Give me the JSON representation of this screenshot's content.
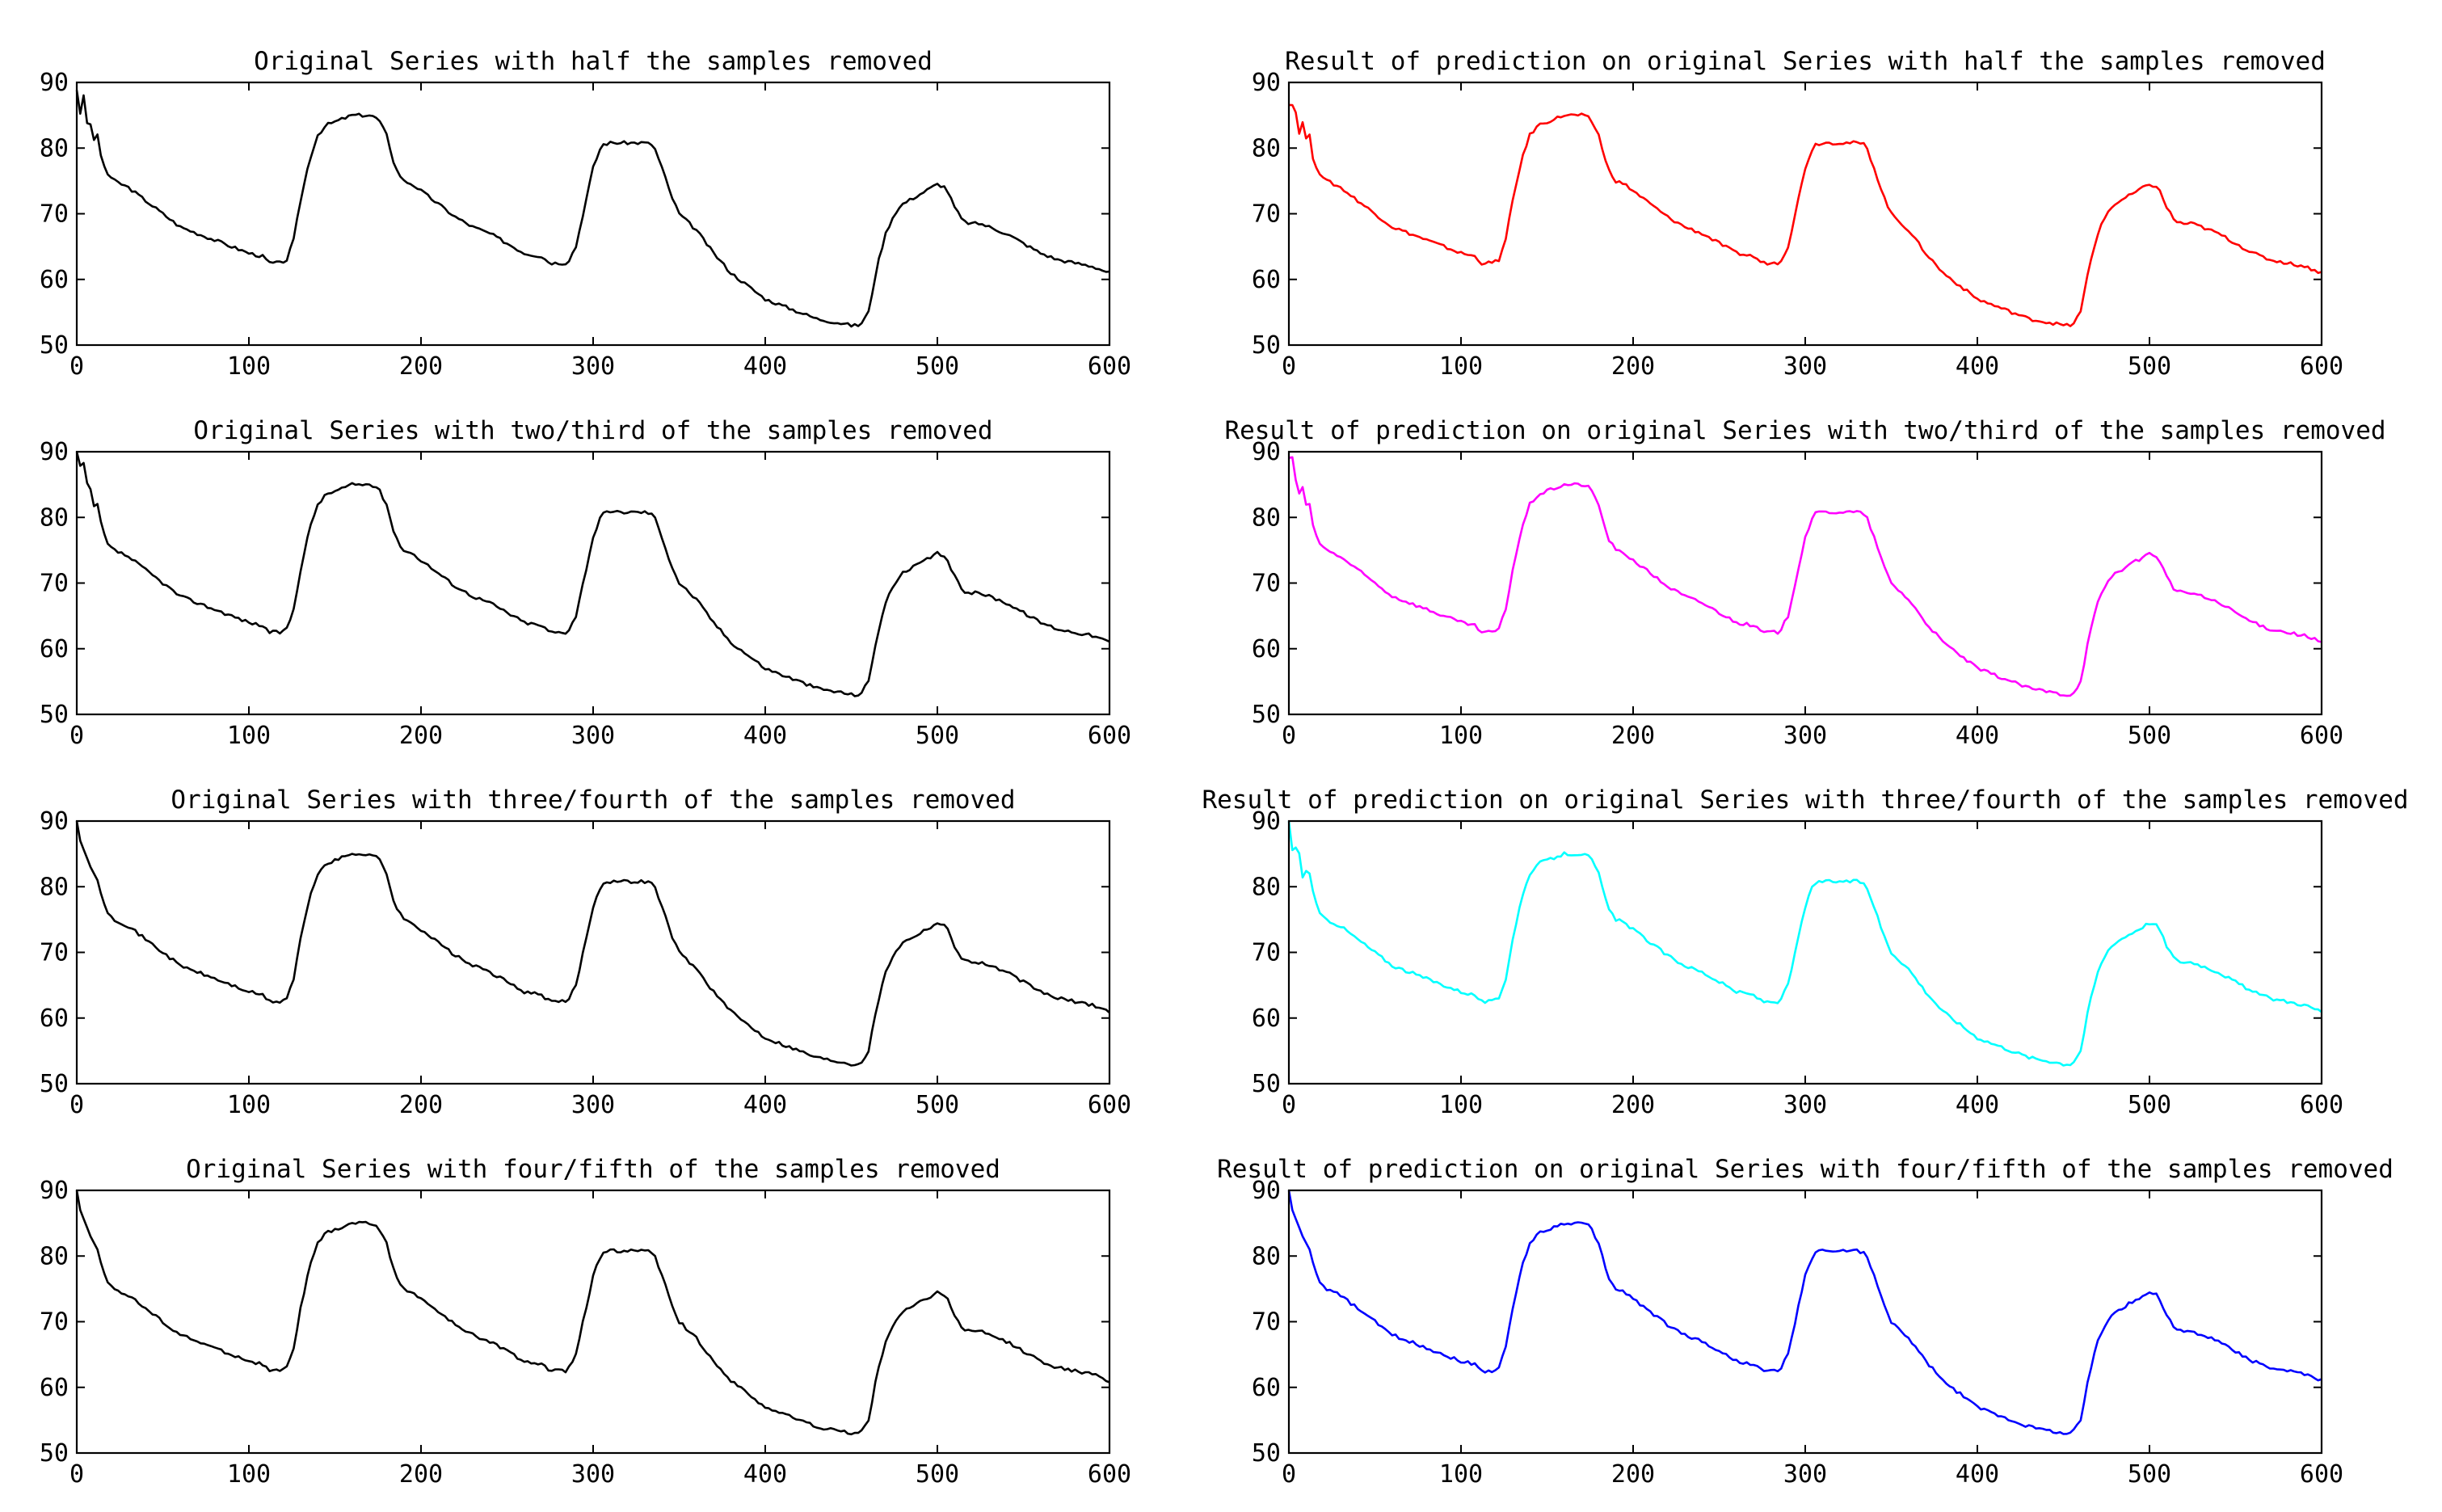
{
  "chart_data": [
    {
      "type": "line",
      "title": "Original Series with half the samples removed",
      "series_name": "original-half",
      "color": "#000000",
      "xlim": [
        0,
        600
      ],
      "ylim": [
        50,
        90
      ],
      "xticks": [
        0,
        100,
        200,
        300,
        400,
        500,
        600
      ],
      "yticks": [
        50,
        60,
        70,
        80,
        90
      ],
      "early_noise": "spiky",
      "xlabel": "",
      "ylabel": ""
    },
    {
      "type": "line",
      "title": "Result of prediction on original Series with half the samples removed",
      "series_name": "prediction-half",
      "color": "#ff0000",
      "xlim": [
        0,
        600
      ],
      "ylim": [
        50,
        90
      ],
      "xticks": [
        0,
        100,
        200,
        300,
        400,
        500,
        600
      ],
      "yticks": [
        50,
        60,
        70,
        80,
        90
      ],
      "early_noise": "spiky",
      "xlabel": "",
      "ylabel": ""
    },
    {
      "type": "line",
      "title": "Original Series with two/third of the samples removed",
      "series_name": "original-two-third",
      "color": "#000000",
      "xlim": [
        0,
        600
      ],
      "ylim": [
        50,
        90
      ],
      "xticks": [
        0,
        100,
        200,
        300,
        400,
        500,
        600
      ],
      "yticks": [
        50,
        60,
        70,
        80,
        90
      ],
      "early_noise": "spiky",
      "xlabel": "",
      "ylabel": ""
    },
    {
      "type": "line",
      "title": "Result of prediction on original Series with two/third of the samples removed",
      "series_name": "prediction-two-third",
      "color": "#ff00ff",
      "xlim": [
        0,
        600
      ],
      "ylim": [
        50,
        90
      ],
      "xticks": [
        0,
        100,
        200,
        300,
        400,
        500,
        600
      ],
      "yticks": [
        50,
        60,
        70,
        80,
        90
      ],
      "early_noise": "spiky",
      "xlabel": "",
      "ylabel": ""
    },
    {
      "type": "line",
      "title": "Original Series with three/fourth of the samples removed",
      "series_name": "original-three-fourth",
      "color": "#000000",
      "xlim": [
        0,
        600
      ],
      "ylim": [
        50,
        90
      ],
      "xticks": [
        0,
        100,
        200,
        300,
        400,
        500,
        600
      ],
      "yticks": [
        50,
        60,
        70,
        80,
        90
      ],
      "early_noise": "smooth",
      "xlabel": "",
      "ylabel": ""
    },
    {
      "type": "line",
      "title": "Result of prediction on original Series with three/fourth of the samples removed",
      "series_name": "prediction-three-fourth",
      "color": "#00ffff",
      "xlim": [
        0,
        600
      ],
      "ylim": [
        50,
        90
      ],
      "xticks": [
        0,
        100,
        200,
        300,
        400,
        500,
        600
      ],
      "yticks": [
        50,
        60,
        70,
        80,
        90
      ],
      "early_noise": "spiky",
      "xlabel": "",
      "ylabel": ""
    },
    {
      "type": "line",
      "title": "Original Series with four/fifth of the samples removed",
      "series_name": "original-four-fifth",
      "color": "#000000",
      "xlim": [
        0,
        600
      ],
      "ylim": [
        50,
        90
      ],
      "xticks": [
        0,
        100,
        200,
        300,
        400,
        500,
        600
      ],
      "yticks": [
        50,
        60,
        70,
        80,
        90
      ],
      "early_noise": "smooth",
      "xlabel": "",
      "ylabel": ""
    },
    {
      "type": "line",
      "title": "Result of prediction on original Series with four/fifth of the samples removed",
      "series_name": "prediction-four-fifth",
      "color": "#0000ff",
      "xlim": [
        0,
        600
      ],
      "ylim": [
        50,
        90
      ],
      "xticks": [
        0,
        100,
        200,
        300,
        400,
        500,
        600
      ],
      "yticks": [
        50,
        60,
        70,
        80,
        90
      ],
      "early_noise": "smooth",
      "xlabel": "",
      "ylabel": ""
    }
  ],
  "base_series": {
    "x": [
      0,
      2,
      5,
      8,
      12,
      15,
      18,
      22,
      30,
      40,
      50,
      60,
      70,
      80,
      90,
      100,
      108,
      112,
      118,
      122,
      126,
      130,
      135,
      140,
      145,
      150,
      155,
      160,
      165,
      170,
      175,
      180,
      185,
      190,
      195,
      200,
      210,
      220,
      230,
      240,
      250,
      260,
      270,
      275,
      280,
      285,
      290,
      295,
      300,
      305,
      310,
      315,
      320,
      325,
      330,
      335,
      340,
      345,
      350,
      360,
      370,
      380,
      390,
      400,
      410,
      420,
      430,
      440,
      445,
      450,
      455,
      460,
      465,
      470,
      475,
      480,
      490,
      500,
      505,
      510,
      515,
      520,
      525,
      530,
      540,
      550,
      560,
      570,
      580,
      590,
      595,
      600
    ],
    "y": [
      90,
      87,
      85,
      83,
      81,
      78,
      76,
      75,
      74,
      72,
      70,
      68,
      67,
      66,
      65,
      64,
      63.5,
      62.5,
      62.5,
      63,
      66,
      72,
      78,
      82,
      83.5,
      84,
      84.5,
      85,
      85,
      85,
      84.5,
      82,
      77,
      75,
      74.5,
      73.5,
      71.5,
      69.5,
      68,
      67,
      65.5,
      64,
      63.5,
      62.5,
      62.5,
      62.5,
      65,
      71,
      77,
      80.5,
      80.8,
      80.8,
      80.8,
      80.8,
      80.8,
      80.5,
      77,
      73,
      70,
      67.5,
      64,
      61,
      59,
      57,
      56,
      55,
      54,
      53.5,
      53.3,
      53,
      53,
      55,
      62,
      67,
      70,
      71.5,
      73,
      74.5,
      74,
      71,
      68.8,
      68.5,
      68.5,
      68,
      67,
      65.5,
      64,
      63,
      62.5,
      62,
      61.5,
      61
    ]
  }
}
